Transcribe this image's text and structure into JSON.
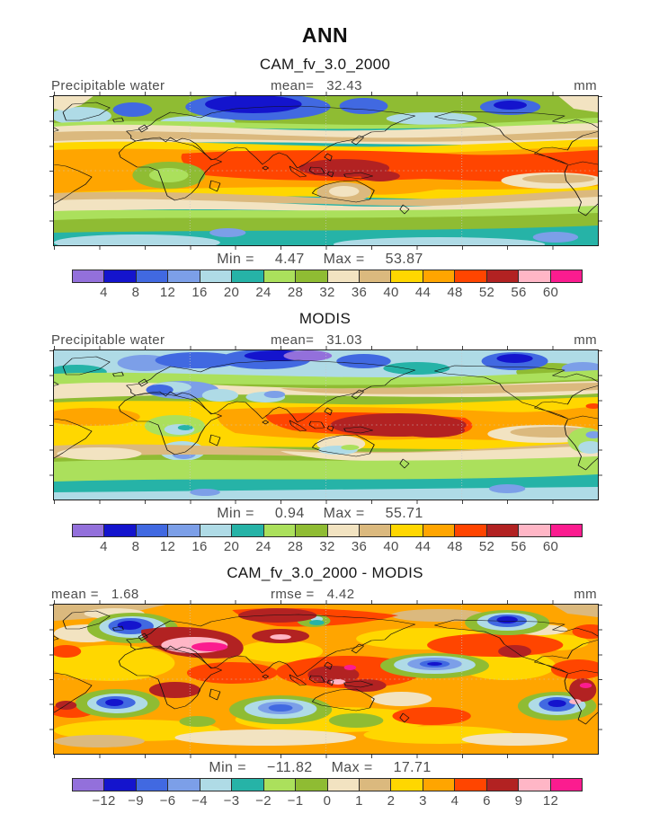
{
  "title": "ANN",
  "palette": [
    "#9370DB",
    "#1414CD",
    "#4169E1",
    "#7C9FE8",
    "#AFDBE6",
    "#26B3A7",
    "#ABE05C",
    "#8FBC33",
    "#F2E3C1",
    "#DBB97E",
    "#FFD700",
    "#FFA500",
    "#FF4500",
    "#B22222",
    "#FFB6C6",
    "#FB1C8F"
  ],
  "abs_ticks": [
    "4",
    "8",
    "12",
    "16",
    "20",
    "24",
    "28",
    "32",
    "36",
    "40",
    "44",
    "48",
    "52",
    "56",
    "60"
  ],
  "diff_ticks": [
    "−12",
    "−9",
    "−6",
    "−4",
    "−3",
    "−2",
    "−1",
    "0",
    "1",
    "2",
    "3",
    "4",
    "6",
    "9",
    "12"
  ],
  "panels": [
    {
      "title": "CAM_fv_3.0_2000",
      "header": {
        "left": "Precipitable water",
        "mid_label": "mean=",
        "mid_value": "32.43",
        "units": "mm"
      },
      "minmax": {
        "min_label": "Min =",
        "min_value": "4.47",
        "max_label": "Max =",
        "max_value": "53.87"
      }
    },
    {
      "title": "MODIS",
      "header": {
        "left": "Precipitable water",
        "mid_label": "mean=",
        "mid_value": "31.03",
        "units": "mm"
      },
      "minmax": {
        "min_label": "Min =",
        "min_value": "0.94",
        "max_label": "Max =",
        "max_value": "55.71"
      }
    },
    {
      "title": "CAM_fv_3.0_2000 - MODIS",
      "header": {
        "left": "mean =",
        "left_value": "1.68",
        "mid_label": "rmse =",
        "mid_value": "4.42",
        "units": "mm"
      },
      "minmax": {
        "min_label": "Min =",
        "min_value": "−11.82",
        "max_label": "Max =",
        "max_value": "17.71"
      }
    }
  ],
  "chart_data": [
    {
      "type": "heatmap",
      "title": "CAM_fv_3.0_2000",
      "season": "ANN",
      "variable": "Precipitable water",
      "units": "mm",
      "mean": 32.43,
      "min": 4.47,
      "max": 53.87,
      "contour_levels": [
        4,
        8,
        12,
        16,
        20,
        24,
        28,
        32,
        36,
        40,
        44,
        48,
        52,
        56,
        60
      ],
      "palette_hex": [
        "#9370DB",
        "#1414CD",
        "#4169E1",
        "#7C9FE8",
        "#AFDBE6",
        "#26B3A7",
        "#ABE05C",
        "#8FBC33",
        "#F2E3C1",
        "#DBB97E",
        "#FFD700",
        "#FFA500",
        "#FF4500",
        "#B22222",
        "#FFB6C6",
        "#FB1C8F"
      ],
      "projection": "global longitude-latitude map, left edge ~60W"
    },
    {
      "type": "heatmap",
      "title": "MODIS",
      "season": "ANN",
      "variable": "Precipitable water",
      "units": "mm",
      "mean": 31.03,
      "min": 0.94,
      "max": 55.71,
      "contour_levels": [
        4,
        8,
        12,
        16,
        20,
        24,
        28,
        32,
        36,
        40,
        44,
        48,
        52,
        56,
        60
      ],
      "projection": "global longitude-latitude map, left edge ~60W"
    },
    {
      "type": "heatmap",
      "title": "CAM_fv_3.0_2000 - MODIS",
      "season": "ANN",
      "variable": "Precipitable water difference",
      "units": "mm",
      "mean": 1.68,
      "rmse": 4.42,
      "min": -11.82,
      "max": 17.71,
      "contour_levels": [
        -12,
        -9,
        -6,
        -4,
        -3,
        -2,
        -1,
        0,
        1,
        2,
        3,
        4,
        6,
        9,
        12
      ],
      "projection": "global longitude-latitude map, left edge ~60W"
    }
  ]
}
